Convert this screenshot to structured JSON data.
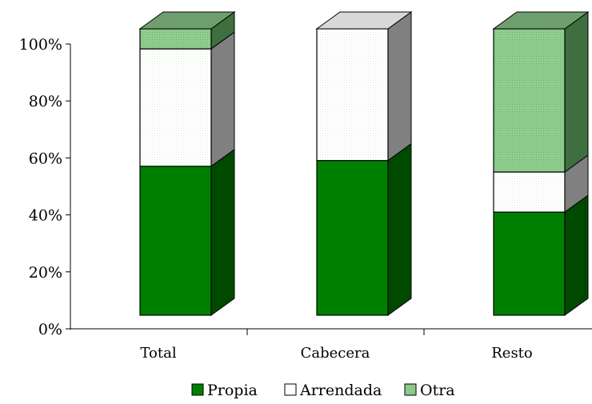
{
  "chart_data": {
    "type": "bar",
    "stacked": true,
    "percent": true,
    "three_d": true,
    "categories": [
      "Total",
      "Cabecera",
      "Resto"
    ],
    "series": [
      {
        "name": "Propia",
        "values": [
          52,
          54,
          36
        ],
        "color": "#008000"
      },
      {
        "name": "Arrendada",
        "values": [
          41,
          46,
          14
        ],
        "color": "#ffffff"
      },
      {
        "name": "Otra",
        "values": [
          7,
          0,
          50
        ],
        "color": "#8bc98b"
      }
    ],
    "yticks": [
      "0%",
      "20%",
      "40%",
      "60%",
      "80%",
      "100%"
    ],
    "ylim": [
      0,
      100
    ],
    "grid": false,
    "legend_position": "bottom"
  }
}
